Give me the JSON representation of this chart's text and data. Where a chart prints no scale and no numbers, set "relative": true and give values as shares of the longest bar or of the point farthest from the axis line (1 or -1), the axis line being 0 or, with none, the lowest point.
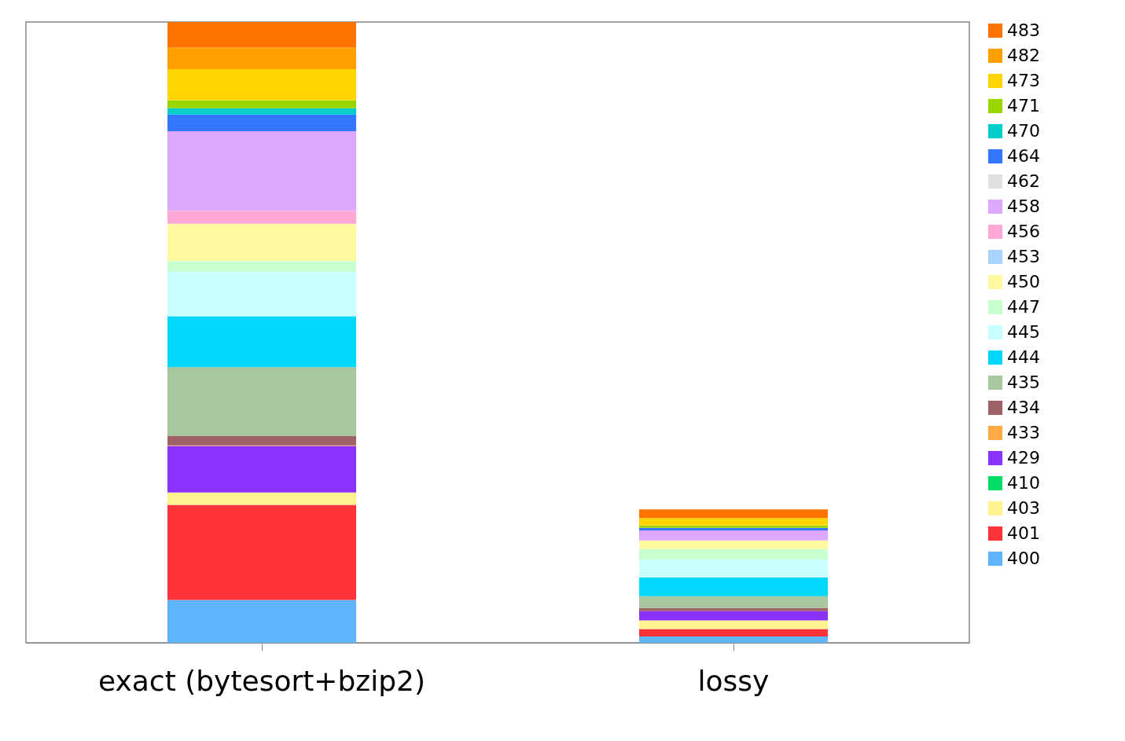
{
  "chart_data": {
    "type": "bar",
    "stacked": true,
    "relative": true,
    "legend": "right",
    "categories": [
      "exact (bytesort+bzip2)",
      "lossy"
    ],
    "series": [
      {
        "name": "400",
        "color": "#5fb6ff",
        "values": [
          0.069,
          0.01
        ]
      },
      {
        "name": "401",
        "color": "#ff333a",
        "values": [
          0.153,
          0.012
        ]
      },
      {
        "name": "403",
        "color": "#fff28f",
        "values": [
          0.02,
          0.014
        ]
      },
      {
        "name": "410",
        "color": "#00dd66",
        "values": [
          0,
          0
        ]
      },
      {
        "name": "429",
        "color": "#8a33ff",
        "values": [
          0.075,
          0.015
        ]
      },
      {
        "name": "433",
        "color": "#ffaa44",
        "values": [
          0.001,
          0
        ]
      },
      {
        "name": "434",
        "color": "#9e6166",
        "values": [
          0.015,
          0.005
        ]
      },
      {
        "name": "435",
        "color": "#a9c79e",
        "values": [
          0.111,
          0.019
        ]
      },
      {
        "name": "444",
        "color": "#00d7ff",
        "values": [
          0.082,
          0.03
        ]
      },
      {
        "name": "445",
        "color": "#c8ffff",
        "values": [
          0.072,
          0.029
        ]
      },
      {
        "name": "447",
        "color": "#c8ffd0",
        "values": [
          0.017,
          0.017
        ]
      },
      {
        "name": "450",
        "color": "#fffaa0",
        "values": [
          0.06,
          0.014
        ]
      },
      {
        "name": "453",
        "color": "#a6d4ff",
        "values": [
          0,
          0
        ]
      },
      {
        "name": "456",
        "color": "#ffa8d6",
        "values": [
          0.021,
          0
        ]
      },
      {
        "name": "458",
        "color": "#dda8ff",
        "values": [
          0.128,
          0.016
        ]
      },
      {
        "name": "462",
        "color": "#e0e0e0",
        "values": [
          0,
          0
        ]
      },
      {
        "name": "464",
        "color": "#3377ff",
        "values": [
          0.027,
          0.004
        ]
      },
      {
        "name": "470",
        "color": "#00cccc",
        "values": [
          0.01,
          0
        ]
      },
      {
        "name": "471",
        "color": "#99d600",
        "values": [
          0.013,
          0.004
        ]
      },
      {
        "name": "473",
        "color": "#ffd400",
        "values": [
          0.05,
          0.012
        ]
      },
      {
        "name": "482",
        "color": "#ff9f00",
        "values": [
          0.035,
          0
        ]
      },
      {
        "name": "483",
        "color": "#ff7300",
        "values": [
          0.041,
          0.014
        ]
      }
    ]
  }
}
